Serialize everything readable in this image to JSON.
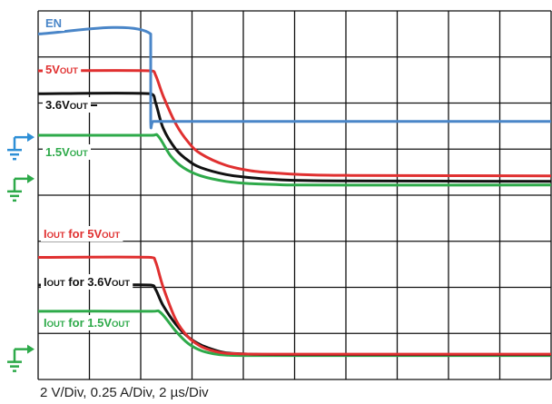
{
  "chart_data": {
    "type": "line",
    "title": "",
    "scale_text": "2 V/Div, 0.25 A/Div, 2 µs/Div",
    "grid": true,
    "time_unit": "µs",
    "xlim": [
      -4.5,
      16
    ],
    "ylim_div": [
      0,
      8
    ],
    "divisions": {
      "x": 10,
      "y": 8
    },
    "channels": [
      {
        "id": "en",
        "parts": [
          {
            "text": "EN",
            "sub": false
          }
        ],
        "color": "#4a86c8",
        "ground_marker": true,
        "ground_color": "#2e8fd6"
      },
      {
        "id": "v5",
        "parts": [
          {
            "text": "5V",
            "sub": false
          },
          {
            "text": "OUT",
            "sub": true
          }
        ],
        "color": "#e03030"
      },
      {
        "id": "v36",
        "parts": [
          {
            "text": "3.6V",
            "sub": false
          },
          {
            "text": "OUT",
            "sub": true
          }
        ],
        "color": "#111111"
      },
      {
        "id": "v15",
        "parts": [
          {
            "text": "1.5V",
            "sub": false
          },
          {
            "text": "OUT",
            "sub": true
          }
        ],
        "color": "#2eaa4a",
        "ground_marker": true,
        "ground_color": "#2eaa4a"
      },
      {
        "id": "i5",
        "parts": [
          {
            "text": "I",
            "sub": false
          },
          {
            "text": "OUT",
            "sub": true
          },
          {
            "text": " for ",
            "sub": false
          },
          {
            "text": "5V",
            "sub": false
          },
          {
            "text": "OUT",
            "sub": true
          }
        ],
        "color": "#e03030"
      },
      {
        "id": "i36",
        "parts": [
          {
            "text": "I",
            "sub": false
          },
          {
            "text": "OUT",
            "sub": true
          },
          {
            "text": " for ",
            "sub": false
          },
          {
            "text": "3.6V",
            "sub": false
          },
          {
            "text": "OUT",
            "sub": true
          }
        ],
        "color": "#111111"
      },
      {
        "id": "i15",
        "parts": [
          {
            "text": "I",
            "sub": false
          },
          {
            "text": "OUT",
            "sub": true
          },
          {
            "text": " for ",
            "sub": false
          },
          {
            "text": "1.5V",
            "sub": false
          },
          {
            "text": "OUT",
            "sub": true
          }
        ],
        "color": "#2eaa4a",
        "ground_marker": true,
        "ground_color": "#2eaa4a"
      }
    ],
    "series": [
      {
        "name": "EN",
        "color": "#4a86c8",
        "x": [
          -4.5,
          0,
          0,
          0.1,
          16
        ],
        "y_div": [
          7.5,
          7.5,
          5.6,
          5.6,
          5.6
        ]
      },
      {
        "name": "5VOUT",
        "color": "#e03030",
        "x": [
          -4.5,
          0,
          0.2,
          0.5,
          1,
          1.5,
          2,
          3,
          4,
          5,
          6,
          8,
          16
        ],
        "y_div": [
          6.7,
          6.7,
          6.6,
          6.15,
          5.55,
          5.15,
          4.9,
          4.65,
          4.53,
          4.48,
          4.45,
          4.43,
          4.42
        ]
      },
      {
        "name": "3.6VOUT",
        "color": "#111111",
        "x": [
          -4.5,
          0,
          0.2,
          0.5,
          1,
          1.5,
          2,
          3,
          4,
          5,
          6,
          8,
          16
        ],
        "y_div": [
          6.2,
          6.2,
          6.0,
          5.45,
          5.0,
          4.75,
          4.6,
          4.45,
          4.38,
          4.34,
          4.32,
          4.31,
          4.3
        ]
      },
      {
        "name": "1.5VOUT",
        "color": "#2eaa4a",
        "x": [
          -4.5,
          0,
          0.3,
          0.8,
          1.3,
          2,
          3,
          4,
          5,
          6,
          16
        ],
        "y_div": [
          5.3,
          5.3,
          5.28,
          4.85,
          4.6,
          4.42,
          4.3,
          4.25,
          4.23,
          4.22,
          4.22
        ]
      },
      {
        "name": "IOUT for 5VOUT",
        "color": "#e03030",
        "x": [
          -4.5,
          0,
          0.2,
          0.5,
          1,
          1.5,
          2,
          2.5,
          3,
          4,
          5,
          6,
          16
        ],
        "y_div": [
          2.65,
          2.65,
          2.55,
          2.0,
          1.3,
          0.92,
          0.72,
          0.62,
          0.57,
          0.55,
          0.55,
          0.55,
          0.55
        ]
      },
      {
        "name": "IOUT for 3.6VOUT",
        "color": "#111111",
        "x": [
          -4.5,
          0,
          0.2,
          0.5,
          1,
          1.5,
          2,
          2.5,
          3,
          4,
          6,
          16
        ],
        "y_div": [
          2.05,
          2.05,
          1.95,
          1.6,
          1.2,
          0.92,
          0.75,
          0.65,
          0.58,
          0.55,
          0.54,
          0.54
        ]
      },
      {
        "name": "IOUT for 1.5VOUT",
        "color": "#2eaa4a",
        "x": [
          -4.5,
          0,
          0.4,
          1,
          1.5,
          2,
          2.5,
          3,
          4,
          16
        ],
        "y_div": [
          1.48,
          1.48,
          1.45,
          1.05,
          0.78,
          0.63,
          0.56,
          0.53,
          0.52,
          0.52
        ]
      }
    ],
    "ground_marker_levels_div": [
      {
        "id": "en",
        "level": 5.1
      },
      {
        "id": "v15",
        "level": 4.2
      },
      {
        "id": "i15",
        "level": 0.5
      }
    ]
  }
}
